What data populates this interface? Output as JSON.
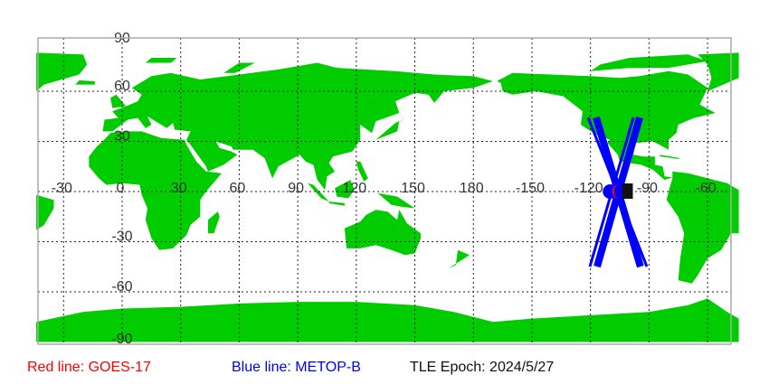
{
  "colors": {
    "land": "#00cc00",
    "ocean": "#ffffff",
    "grid": "#222222",
    "frame": "#aaaaaa",
    "red_track": "#ff0000",
    "blue_track": "#0000ff",
    "satellite_marker": "#111111"
  },
  "map": {
    "projection": "equirectangular",
    "lon_range": [
      -44,
      316
    ],
    "lat_range": [
      -90,
      90
    ],
    "grid_lons": [
      -30,
      0,
      30,
      60,
      90,
      120,
      150,
      180,
      210,
      240,
      270,
      300
    ],
    "grid_lats": [
      60,
      30,
      0,
      -30,
      -60
    ],
    "lon_labels": [
      {
        "lon": -30,
        "text": "-30"
      },
      {
        "lon": 0,
        "text": "0"
      },
      {
        "lon": 30,
        "text": "30"
      },
      {
        "lon": 60,
        "text": "60"
      },
      {
        "lon": 90,
        "text": "90"
      },
      {
        "lon": 120,
        "text": "120"
      },
      {
        "lon": 150,
        "text": "150"
      },
      {
        "lon": 180,
        "text": "180"
      },
      {
        "lon": 210,
        "text": "-150"
      },
      {
        "lon": 240,
        "text": "-120"
      },
      {
        "lon": 270,
        "text": "-90"
      },
      {
        "lon": 300,
        "text": "-60"
      }
    ],
    "lat_labels": [
      {
        "lat": 90,
        "text": "90"
      },
      {
        "lat": 60,
        "text": "60"
      },
      {
        "lat": 30,
        "text": "30"
      },
      {
        "lat": -30,
        "text": "-30"
      },
      {
        "lat": -60,
        "text": "-60"
      },
      {
        "lat": -90,
        "text": "-90"
      }
    ],
    "blue_tracks": [
      {
        "from": [
          -117.1,
          44.3
        ],
        "to": [
          -94.4,
          -44.9
        ],
        "weight": "thick"
      },
      {
        "from": [
          -94.8,
          44.3
        ],
        "to": [
          -116.6,
          -44.9
        ],
        "weight": "thick"
      },
      {
        "from": [
          -121.2,
          44.3
        ],
        "to": [
          -91.1,
          -44.9
        ],
        "weight": "thin"
      },
      {
        "from": [
          -98.0,
          44.3
        ],
        "to": [
          -120.3,
          -44.9
        ],
        "weight": "thin"
      }
    ],
    "blue_position": [
      -110,
      0
    ],
    "red_position": [
      -106.5,
      0
    ],
    "satellite_marker_position": [
      -102,
      0
    ]
  },
  "legend": {
    "red": "Red line: GOES-17",
    "blue": "Blue line: METOP-B",
    "epoch": "TLE Epoch: 2024/5/27"
  }
}
